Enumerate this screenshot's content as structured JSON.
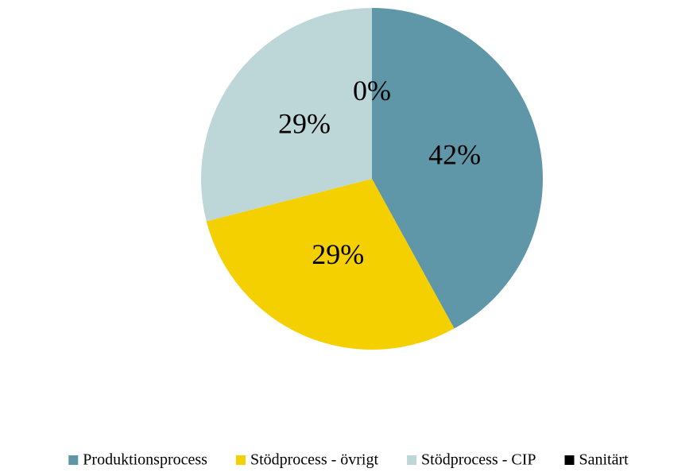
{
  "chart_data": {
    "type": "pie",
    "categories": [
      "Produktionsprocess",
      "Stödprocess - övrigt",
      "Stödprocess - CIP",
      "Sanitärt"
    ],
    "values": [
      42,
      29,
      29,
      0
    ],
    "value_labels": [
      "42%",
      "29%",
      "29%",
      "0%"
    ],
    "colors": [
      "#5f97a8",
      "#f5d000",
      "#bdd7d9",
      "#000000"
    ],
    "legend": "bottom"
  }
}
